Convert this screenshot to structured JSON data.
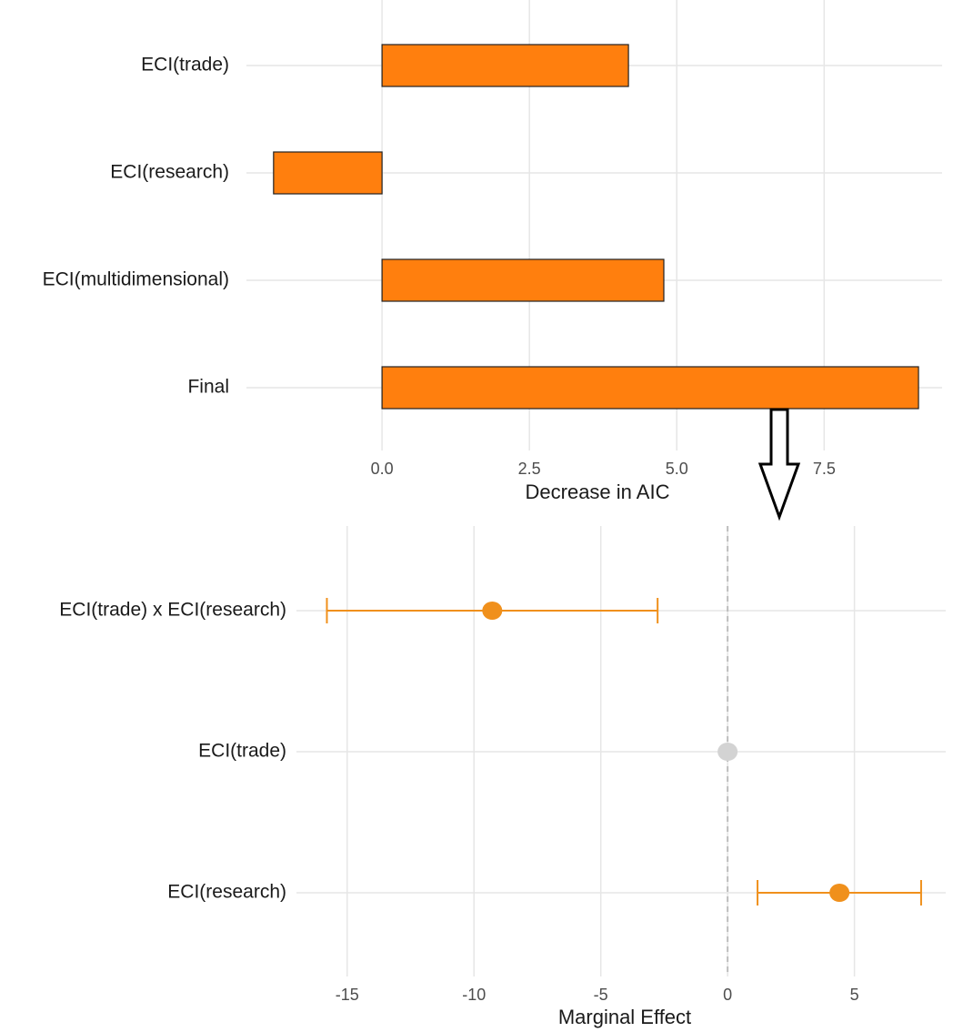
{
  "chart_data": [
    {
      "type": "bar",
      "orientation": "horizontal",
      "categories": [
        "ECI(trade)",
        "ECI(research)",
        "ECI(multidimensional)",
        "Final"
      ],
      "values": [
        4.18,
        -1.84,
        4.78,
        9.1
      ],
      "color": "#ff7f0e",
      "xlabel": "Decrease in AIC",
      "xlim": [
        -2.3,
        9.5
      ],
      "xticks": [
        {
          "value": 0,
          "label": "0.0"
        },
        2.5,
        {
          "value": 5,
          "label": "5.0"
        },
        7.5
      ],
      "grid": true
    },
    {
      "type": "errorbar",
      "orientation": "horizontal",
      "categories": [
        "ECI(trade) x ECI(research)",
        "ECI(trade)",
        "ECI(research)"
      ],
      "values": [
        -9.28,
        0,
        4.41
      ],
      "lower": [
        -15.8,
        null,
        1.18
      ],
      "upper": [
        -2.76,
        null,
        7.63
      ],
      "colors": [
        "#f0901c",
        "#d3d3d3",
        "#f0901c"
      ],
      "xlabel": "Marginal Effect",
      "xlim": [
        -17,
        8.6
      ],
      "xticks": [
        -15,
        -10,
        -5,
        0,
        5
      ],
      "reference_line": 0,
      "grid": true
    }
  ]
}
